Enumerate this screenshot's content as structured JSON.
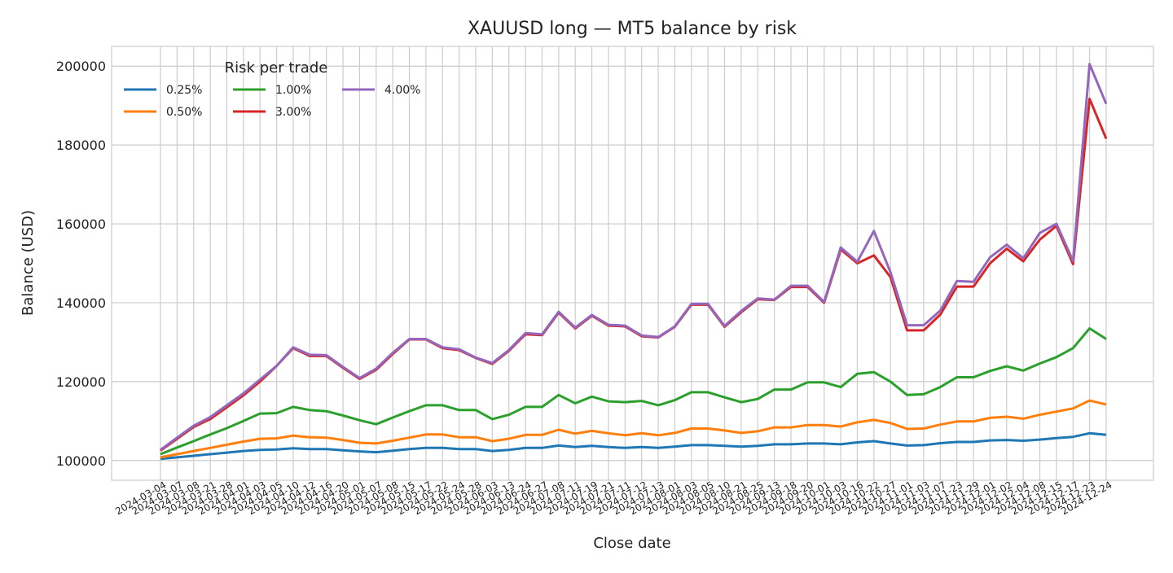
{
  "chart_data": {
    "type": "line",
    "title": "XAUUSD long — MT5 balance by risk",
    "xlabel": "Close date",
    "ylabel": "Balance (USD)",
    "ylim": [
      95000,
      205000
    ],
    "yticks": [
      "100000",
      "120000",
      "140000",
      "160000",
      "180000",
      "200000"
    ],
    "grid": true,
    "legend": {
      "title": "Risk per trade",
      "placement": "upper-left"
    },
    "xticks": [
      "2024-03-04",
      "2024-03-07",
      "2024-03-08",
      "2024-03-21",
      "2024-03-28",
      "2024-04-01",
      "2024-04-03",
      "2024-04-05",
      "2024-04-10",
      "2024-04-12",
      "2024-04-16",
      "2024-04-20",
      "2024-05-01",
      "2024-05-07",
      "2024-05-08",
      "2024-05-15",
      "2024-05-17",
      "2024-05-22",
      "2024-05-24",
      "2024-05-28",
      "2024-06-03",
      "2024-06-13",
      "2024-06-24",
      "2024-06-27",
      "2024-07-08",
      "2024-07-11",
      "2024-07-19",
      "2024-07-21",
      "2024-07-11",
      "2024-07-12",
      "2024-07-13",
      "2024-08-01",
      "2024-08-03",
      "2024-08-05",
      "2024-08-10",
      "2024-08-21",
      "2024-08-25",
      "2024-09-13",
      "2024-09-18",
      "2024-09-20",
      "2024-10-01",
      "2024-10-03",
      "2024-10-16",
      "2024-10-22",
      "2024-10-27",
      "2024-11-01",
      "2024-11-03",
      "2024-11-07",
      "2024-11-23",
      "2024-11-29",
      "2024-12-01",
      "2024-12-02",
      "2024-12-04",
      "2024-12-08",
      "2024-12-15",
      "2024-12-17",
      "2024-12-23",
      "2024-12-24"
    ],
    "x": [
      "2024-03-04",
      "2024-03-07",
      "2024-03-08",
      "2024-03-21",
      "2024-03-28",
      "2024-04-01",
      "2024-04-03",
      "2024-04-05",
      "2024-04-10",
      "2024-04-12",
      "2024-04-16",
      "2024-04-20",
      "2024-05-01",
      "2024-05-07",
      "2024-05-08",
      "2024-05-15",
      "2024-05-17",
      "2024-05-22",
      "2024-05-24",
      "2024-05-28",
      "2024-06-03",
      "2024-06-13",
      "2024-06-24",
      "2024-06-27",
      "2024-07-08",
      "2024-07-11",
      "2024-07-19",
      "2024-07-21",
      "2024-07-11",
      "2024-07-12",
      "2024-07-13",
      "2024-08-01",
      "2024-08-03",
      "2024-08-05",
      "2024-08-10",
      "2024-08-21",
      "2024-08-25",
      "2024-09-13",
      "2024-09-18",
      "2024-09-20",
      "2024-10-01",
      "2024-10-03",
      "2024-10-16",
      "2024-10-22",
      "2024-10-27",
      "2024-11-01",
      "2024-11-03",
      "2024-11-07",
      "2024-11-23",
      "2024-11-29",
      "2024-12-01",
      "2024-12-02",
      "2024-12-04",
      "2024-12-08",
      "2024-12-15",
      "2024-12-17",
      "2024-12-23",
      "2024-12-24"
    ],
    "series": [
      {
        "name": "0.25%",
        "color": "#1f77b4",
        "values": [
          100400,
          100800,
          101200,
          101600,
          102000,
          102400,
          102700,
          102800,
          103100,
          102900,
          102900,
          102600,
          102300,
          102100,
          102500,
          102900,
          103200,
          103200,
          102900,
          102900,
          102400,
          102700,
          103200,
          103200,
          103800,
          103400,
          103700,
          103400,
          103200,
          103400,
          103200,
          103500,
          103900,
          103900,
          103700,
          103500,
          103700,
          104100,
          104100,
          104300,
          104300,
          104100,
          104600,
          104900,
          104300,
          103800,
          103900,
          104400,
          104700,
          104700,
          105100,
          105200,
          105000,
          105300,
          105700,
          106000,
          106900,
          106500
        ]
      },
      {
        "name": "0.50%",
        "color": "#ff7f0e",
        "values": [
          100800,
          101600,
          102400,
          103200,
          104000,
          104800,
          105500,
          105600,
          106300,
          105900,
          105800,
          105200,
          104500,
          104300,
          105000,
          105800,
          106600,
          106600,
          105900,
          105900,
          104900,
          105500,
          106500,
          106500,
          107800,
          106800,
          107500,
          106900,
          106400,
          106900,
          106400,
          107000,
          108100,
          108100,
          107600,
          107000,
          107400,
          108400,
          108400,
          109000,
          109000,
          108600,
          109700,
          110300,
          109500,
          108000,
          108100,
          109100,
          109900,
          109900,
          110800,
          111100,
          110600,
          111600,
          112400,
          113200,
          115200,
          114200
        ]
      },
      {
        "name": "1.00%",
        "color": "#2ca02c",
        "values": [
          101600,
          103300,
          104900,
          106600,
          108200,
          110000,
          111900,
          112000,
          113600,
          112800,
          112500,
          111400,
          110200,
          109200,
          110900,
          112500,
          114000,
          114000,
          112800,
          112800,
          110500,
          111600,
          113600,
          113600,
          116600,
          114500,
          116200,
          115000,
          114800,
          115100,
          114000,
          115300,
          117300,
          117300,
          116000,
          114800,
          115600,
          118000,
          118000,
          119800,
          119800,
          118600,
          122000,
          122400,
          120000,
          116600,
          116800,
          118600,
          121100,
          121100,
          122700,
          123900,
          122800,
          124600,
          126200,
          128500,
          133500,
          130800
        ]
      },
      {
        "name": "3.00%",
        "color": "#d62728",
        "values": [
          102500,
          105500,
          108500,
          110500,
          113500,
          116500,
          120000,
          124000,
          128500,
          126500,
          126500,
          123500,
          120700,
          123000,
          127000,
          130700,
          130700,
          128500,
          128000,
          126000,
          124500,
          127800,
          132000,
          131800,
          137500,
          133500,
          136700,
          134200,
          134000,
          131500,
          131200,
          133900,
          139500,
          139500,
          133900,
          137600,
          140900,
          140700,
          144000,
          144000,
          140000,
          153500,
          150000,
          152000,
          146500,
          133000,
          133000,
          137000,
          144100,
          144100,
          150000,
          153700,
          150500,
          156000,
          159500,
          149800,
          191700,
          181600
        ]
      },
      {
        "name": "4.00%",
        "color": "#9467bd",
        "values": [
          102700,
          105800,
          108800,
          111000,
          114000,
          117000,
          120500,
          124000,
          128700,
          126800,
          126700,
          123700,
          120900,
          123300,
          127300,
          130800,
          130800,
          128700,
          128200,
          126100,
          124700,
          128000,
          132300,
          132000,
          137700,
          133700,
          136900,
          134400,
          134200,
          131700,
          131300,
          134000,
          139700,
          139700,
          134100,
          137900,
          141100,
          140800,
          144300,
          144300,
          140200,
          154000,
          150400,
          158200,
          147700,
          134300,
          134300,
          138000,
          145500,
          145300,
          151500,
          154700,
          151300,
          157700,
          160000,
          150600,
          200500,
          190400
        ]
      }
    ]
  }
}
